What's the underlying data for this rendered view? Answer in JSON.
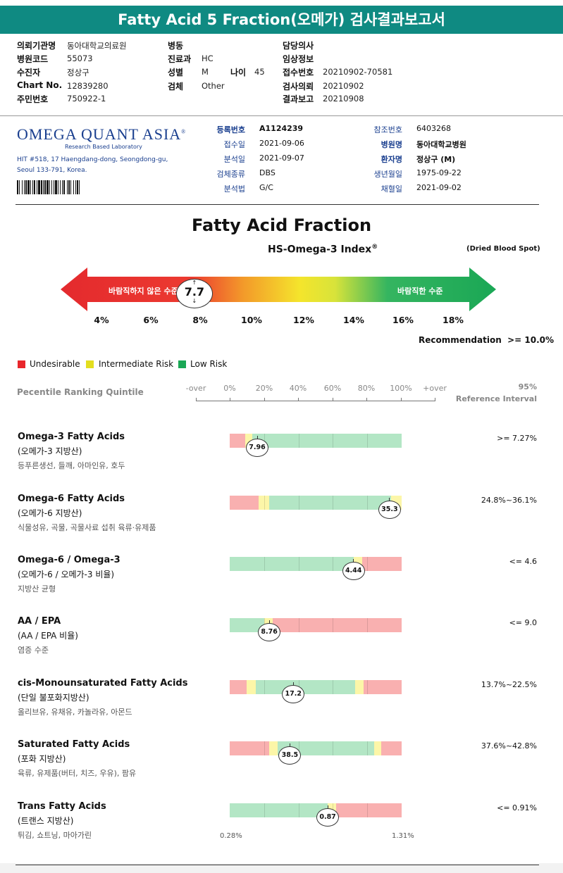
{
  "report_title": "Fatty Acid 5 Fraction(오메가) 검사결과보고서",
  "patient_header": {
    "col1": [
      {
        "label": "의뢰기관명",
        "value": "동아대학교의료원"
      },
      {
        "label": "병원코드",
        "value": "55073"
      },
      {
        "label": "수진자",
        "value": "정상구"
      },
      {
        "label": "Chart No.",
        "value": "12839280"
      },
      {
        "label": "주민번호",
        "value": "750922-1"
      }
    ],
    "col2": [
      {
        "label": "병동",
        "value": ""
      },
      {
        "label": "진료과",
        "value": "HC"
      },
      {
        "label": "성별",
        "value": "M"
      },
      {
        "label": "검체",
        "value": "Other"
      }
    ],
    "age_label": "나이",
    "age_value": "45",
    "col3": [
      {
        "label": "담당의사",
        "value": ""
      },
      {
        "label": "임상정보",
        "value": ""
      },
      {
        "label": "접수번호",
        "value": "20210902-70581"
      },
      {
        "label": "검사의뢰",
        "value": "20210902"
      },
      {
        "label": "결과보고",
        "value": "20210908"
      }
    ]
  },
  "lab": {
    "logo_text": "OMEGA QUANT ASIA",
    "logo_reg": "®",
    "logo_sub": "Research Based Laboratory",
    "address_line1": "HIT #518, 17 Haengdang-dong, Seongdong-gu,",
    "address_line2": "Seoul 133-791, Korea."
  },
  "sample_info": {
    "left": [
      {
        "label": "등록번호",
        "value": "A1124239",
        "bold": true
      },
      {
        "label": "접수일",
        "value": "2021-09-06"
      },
      {
        "label": "분석일",
        "value": "2021-09-07"
      },
      {
        "label": "검체종류",
        "value": "DBS"
      },
      {
        "label": "분석법",
        "value": "G/C"
      }
    ],
    "right": [
      {
        "label": "참조번호",
        "value": "6403268"
      },
      {
        "label": "병원명",
        "value": "동아대학교병원",
        "bold": true
      },
      {
        "label": "환자명",
        "value": "정상구 (M)",
        "bold": true
      },
      {
        "label": "생년월일",
        "value": "1975-09-22"
      },
      {
        "label": "채혈일",
        "value": "2021-09-02"
      }
    ]
  },
  "fraction": {
    "title": "Fatty Acid Fraction",
    "index_title": "HS-Omega-3 Index",
    "index_sup": "®",
    "specimen": "(Dried Blood Spot)",
    "arrow_left_text": "바람직하지 않은 수준",
    "arrow_right_text": "바람직한 수준",
    "index_value": "7.7",
    "index_numeric": 7.7,
    "scale_labels": [
      "4%",
      "6%",
      "8%",
      "10%",
      "12%",
      "14%",
      "16%",
      "18%"
    ],
    "recommendation_label": "Recommendation",
    "recommendation_value": ">= 10.0%"
  },
  "legend": [
    {
      "label": "Undesirable",
      "color": "#e8262b"
    },
    {
      "label": "Intermediate Risk",
      "color": "#e3de1e"
    },
    {
      "label": "Low Risk",
      "color": "#1aa755"
    }
  ],
  "quintile": {
    "title": "Pecentile Ranking Quintile",
    "axis_labels": [
      "-over",
      "0%",
      "20%",
      "40%",
      "60%",
      "80%",
      "100%",
      "+over"
    ],
    "ref_line1": "95%",
    "ref_line2": "Reference Interval"
  },
  "colors": {
    "red": "#f9b0b0",
    "yellow": "#fcf6a8",
    "green": "#b3e6c5",
    "accent": "#0f8a82"
  },
  "fatty_acids": [
    {
      "name": "Omega-3 Fatty Acids",
      "kr": "(오메가-3 지방산)",
      "food": "등푸른생선, 들깨, 아마인유, 호두",
      "ref": ">= 7.27%",
      "value": "7.96",
      "segments": [
        [
          "red",
          0,
          0.09
        ],
        [
          "yellow",
          0.09,
          0.13
        ],
        [
          "green",
          0.13,
          1.0
        ]
      ],
      "pos": 0.16
    },
    {
      "name": "Omega-6 Fatty Acids",
      "kr": "(오메가-6 지방산)",
      "food": "식물성유, 곡물, 곡물사료 섭취 육류·유제품",
      "ref": "24.8%~36.1%",
      "value": "35.3",
      "segments": [
        [
          "red",
          0,
          0.17
        ],
        [
          "yellow",
          0.17,
          0.23
        ],
        [
          "green",
          0.23,
          0.94
        ],
        [
          "yellow",
          0.94,
          1.0
        ]
      ],
      "pos": 0.93
    },
    {
      "name": "Omega-6 / Omega-3",
      "kr": "(오메가-6 / 오메가-3 비율)",
      "food": "지방산 균형",
      "ref": "<= 4.6",
      "value": "4.44",
      "segments": [
        [
          "green",
          0,
          0.72
        ],
        [
          "yellow",
          0.72,
          0.77
        ],
        [
          "red",
          0.77,
          1.0
        ]
      ],
      "pos": 0.72
    },
    {
      "name": "AA / EPA",
      "kr": "(AA / EPA 비율)",
      "food": "염증 수준",
      "ref": "<= 9.0",
      "value": "8.76",
      "segments": [
        [
          "green",
          0,
          0.2
        ],
        [
          "yellow",
          0.2,
          0.25
        ],
        [
          "red",
          0.25,
          1.0
        ]
      ],
      "pos": 0.23
    },
    {
      "name": "cis-Monounsaturated Fatty Acids",
      "kr": "(단일 불포화지방산)",
      "food": "올리브유, 유채유, 카놀라유, 아몬드",
      "ref": "13.7%~22.5%",
      "value": "17.2",
      "segments": [
        [
          "red",
          0,
          0.1
        ],
        [
          "yellow",
          0.1,
          0.15
        ],
        [
          "green",
          0.15,
          0.73
        ],
        [
          "yellow",
          0.73,
          0.78
        ],
        [
          "red",
          0.78,
          1.0
        ]
      ],
      "pos": 0.37
    },
    {
      "name": "Saturated Fatty Acids",
      "kr": "(포화 지방산)",
      "food": "육류, 유제품(버터, 치즈, 우유), 팜유",
      "ref": "37.6%~42.8%",
      "value": "38.5",
      "segments": [
        [
          "red",
          0,
          0.23
        ],
        [
          "yellow",
          0.23,
          0.28
        ],
        [
          "green",
          0.28,
          0.84
        ],
        [
          "yellow",
          0.84,
          0.88
        ],
        [
          "red",
          0.88,
          1.0
        ]
      ],
      "pos": 0.35
    },
    {
      "name": "Trans Fatty Acids",
      "kr": "(트랜스 지방산)",
      "food": "튀김, 쇼트닝, 마아가린",
      "ref": "<= 0.91%",
      "value": "0.87",
      "segments": [
        [
          "green",
          0,
          0.57
        ],
        [
          "yellow",
          0.57,
          0.62
        ],
        [
          "red",
          0.62,
          1.0
        ]
      ],
      "pos": 0.57
    }
  ],
  "trans_range": {
    "min": "0.28%",
    "max": "1.31%"
  }
}
